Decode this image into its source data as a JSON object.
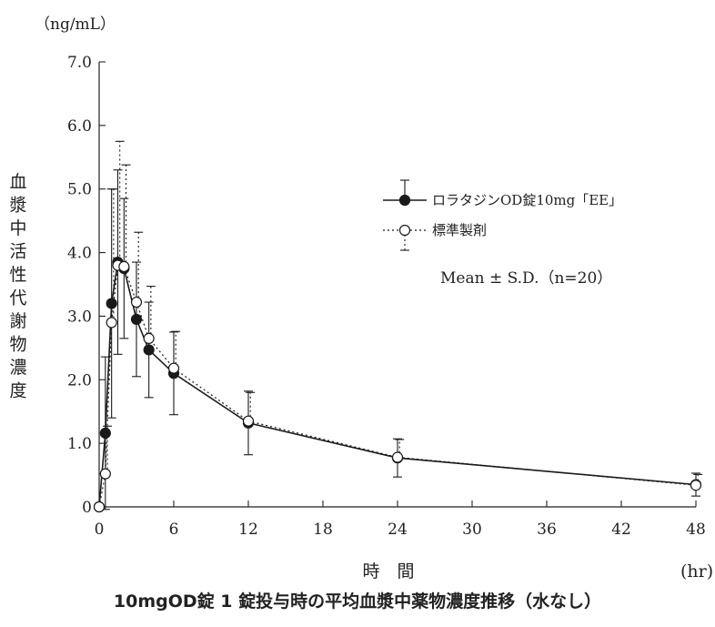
{
  "chart_data": {
    "type": "line",
    "caption": "10mgOD錠 1 錠投与時の平均血漿中薬物濃度推移（水なし）",
    "xlabel": "時　間",
    "x_unit": "(hr)",
    "ylabel": "血漿中活性代謝物濃度",
    "y_unit": "（ng/mL）",
    "xlim": [
      0,
      48
    ],
    "ylim": [
      0,
      7.0
    ],
    "x_ticks": [
      0,
      6,
      12,
      18,
      24,
      30,
      36,
      42,
      48
    ],
    "x_tick_labels": [
      "0",
      "6",
      "12",
      "18",
      "24",
      "30",
      "36",
      "42",
      "48"
    ],
    "y_ticks": [
      0,
      1,
      2,
      3,
      4,
      5,
      6,
      7
    ],
    "y_tick_labels": [
      "0",
      "1.0",
      "2.0",
      "3.0",
      "4.0",
      "5.0",
      "6.0",
      "7.0"
    ],
    "annotation": "Mean ± S.D.（n=20）",
    "legend_position": "top-right",
    "series": [
      {
        "name": "ロラタジンOD錠10mg「EE」",
        "marker": "filled-circle",
        "line": "solid",
        "color": "#1a1a1a",
        "x": [
          0,
          0.5,
          1,
          1.5,
          2,
          3,
          4,
          6,
          12,
          24,
          48
        ],
        "y": [
          0,
          1.16,
          3.2,
          3.85,
          3.75,
          2.95,
          2.47,
          2.1,
          1.32,
          0.77,
          0.35
        ],
        "sd": [
          0,
          1.2,
          1.8,
          1.45,
          1.1,
          0.9,
          0.75,
          0.65,
          0.5,
          0.3,
          0.18
        ]
      },
      {
        "name": "標準製剤",
        "marker": "open-circle",
        "line": "dotted",
        "color": "#1a1a1a",
        "x": [
          0,
          0.5,
          1,
          1.5,
          2,
          3,
          4,
          6,
          12,
          24,
          48
        ],
        "y": [
          0,
          0.52,
          2.9,
          3.8,
          3.78,
          3.22,
          2.65,
          2.18,
          1.35,
          0.78,
          0.34
        ],
        "sd": [
          0,
          0.75,
          2.1,
          1.95,
          1.6,
          1.1,
          0.82,
          0.58,
          0.45,
          0.28,
          0.17
        ]
      }
    ]
  }
}
